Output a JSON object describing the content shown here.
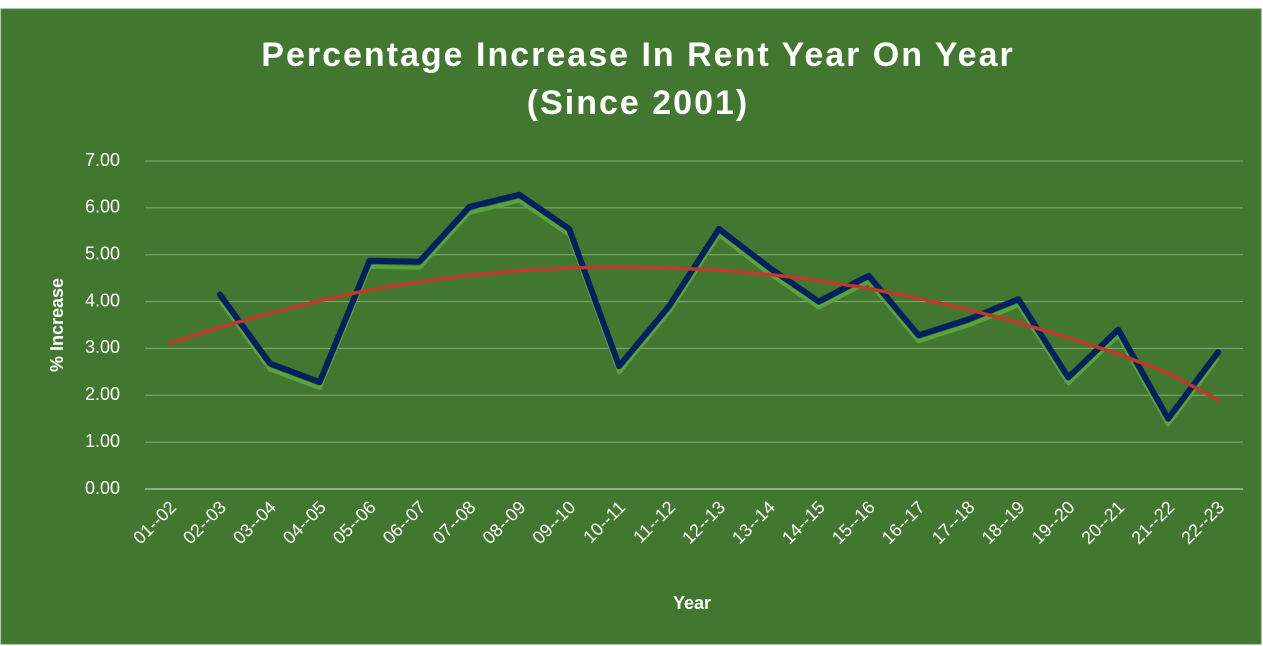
{
  "chart_data": {
    "type": "line",
    "title": "Percentage Increase In Rent Year On Year",
    "subtitle": "(Since 2001)",
    "y_label": "% Increase",
    "x_label": "Year",
    "categories": [
      "01--02",
      "02--03",
      "03--04",
      "04--05",
      "05--06",
      "06--07",
      "07--08",
      "08--09",
      "09--10",
      "10--11",
      "11--12",
      "12--13",
      "13--14",
      "14--15",
      "15--16",
      "16--17",
      "17--18",
      "18--19",
      "19--20",
      "20--21",
      "21--22",
      "22--23"
    ],
    "series": [
      {
        "color": "#002060",
        "drop_lines": true,
        "values": [
          null,
          4.15,
          2.68,
          2.28,
          4.87,
          4.85,
          6.02,
          6.28,
          5.55,
          2.62,
          3.9,
          5.55,
          4.73,
          4.0,
          4.55,
          3.28,
          3.62,
          4.05,
          2.38,
          3.4,
          1.5,
          2.92
        ]
      },
      {
        "color": "#c0392b",
        "trend": true,
        "values": [
          3.12,
          3.45,
          3.75,
          4.02,
          4.25,
          4.42,
          4.56,
          4.66,
          4.72,
          4.74,
          4.72,
          4.67,
          4.58,
          4.45,
          4.28,
          4.07,
          3.83,
          3.55,
          3.23,
          2.88,
          2.48,
          1.9
        ]
      }
    ],
    "ylim": [
      0,
      7
    ],
    "yticks": [
      {
        "value": 0,
        "label": "0.00"
      },
      {
        "value": 1,
        "label": "1.00"
      },
      {
        "value": 2,
        "label": "2.00"
      },
      {
        "value": 3,
        "label": "3.00"
      },
      {
        "value": 4,
        "label": "4.00"
      },
      {
        "value": 5,
        "label": "5.00"
      },
      {
        "value": 6,
        "label": "6.00"
      },
      {
        "value": 7,
        "label": "7.00"
      }
    ],
    "grid": true,
    "background": "#41772e"
  }
}
